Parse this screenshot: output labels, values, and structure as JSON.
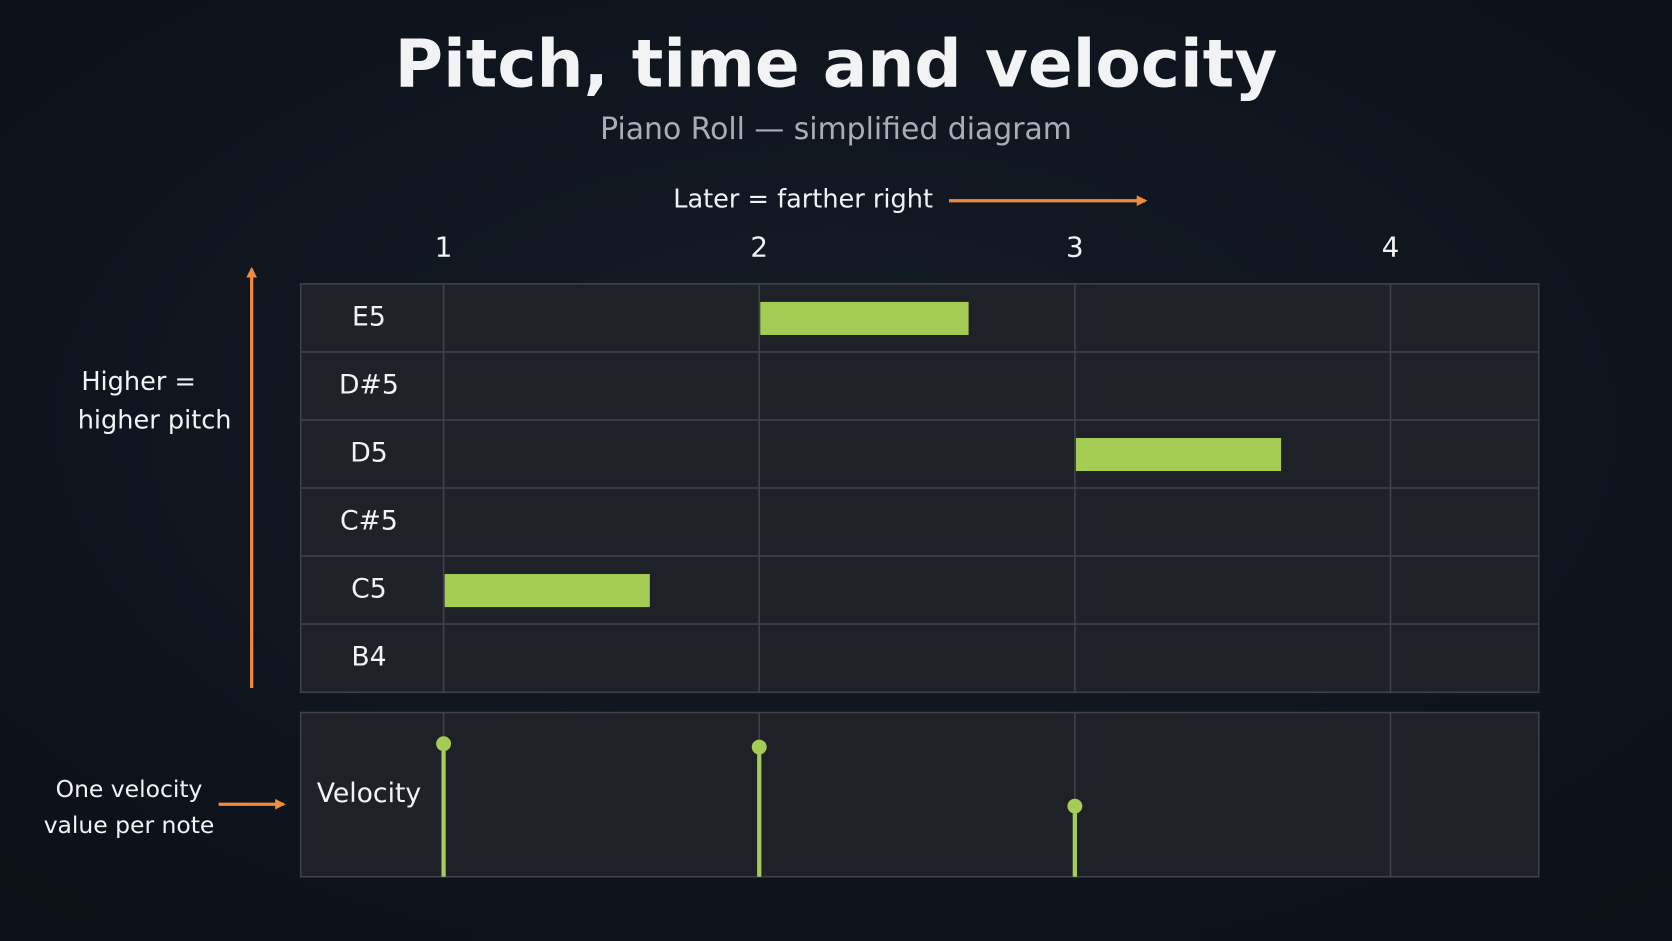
{
  "header": {
    "title": "Pitch, time and velocity",
    "subtitle": "Piano Roll — simplified diagram"
  },
  "time_label": "Later = farther right",
  "pitch_label": [
    "Higher =",
    "higher pitch"
  ],
  "velocity_note": [
    "One velocity",
    "value per note"
  ],
  "velocity_label": "Velocity",
  "beats": [
    1,
    2,
    3,
    4
  ],
  "pitches": [
    "E5",
    "D#5",
    "D5",
    "C#5",
    "C5",
    "B4"
  ],
  "notes": [
    {
      "pitch": "C5",
      "start": 1,
      "duration": 0.65,
      "velocity": 0.81
    },
    {
      "pitch": "E5",
      "start": 2,
      "duration": 0.66,
      "velocity": 0.79
    },
    {
      "pitch": "D5",
      "start": 3,
      "duration": 0.65,
      "velocity": 0.43
    }
  ]
}
